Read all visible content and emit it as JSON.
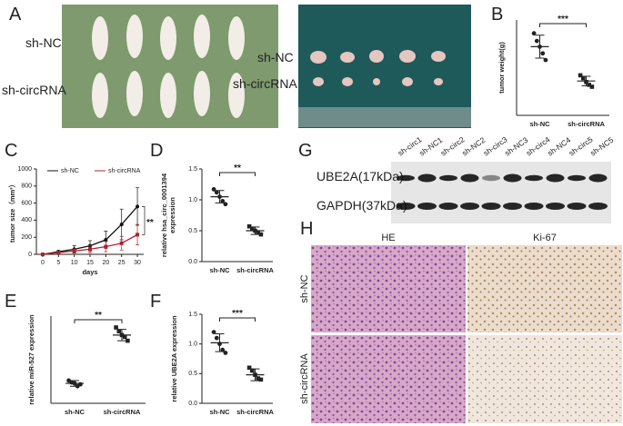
{
  "panel_letters": [
    "A",
    "B",
    "C",
    "D",
    "E",
    "F",
    "G",
    "H"
  ],
  "panel_a": {
    "mice_labels": [
      "sh-NC",
      "sh-circRNA"
    ],
    "tumor_labels": [
      "sh-NC",
      "sh-circRNA"
    ]
  },
  "panel_g": {
    "lanes": [
      "sh-circ1",
      "sh-NC1",
      "sh-circ2",
      "sh-NC2",
      "sh-circ3",
      "sh-NC3",
      "sh-circ4",
      "sh-NC4",
      "sh-circ5",
      "sh-NC5"
    ],
    "rows": [
      "UBE2A(17kDa)",
      "GAPDH(37kDa)"
    ]
  },
  "panel_h": {
    "columns": [
      "HE",
      "Ki-67"
    ],
    "rows": [
      "sh-NC",
      "sh-circRNA"
    ]
  },
  "chart_data": [
    {
      "type": "dot",
      "ylabel": [
        "tumor weight(g)"
      ],
      "categories": [
        "sh-NC",
        "sh-circRNA"
      ],
      "points": [
        [
          0.86,
          0.78,
          0.72,
          0.65,
          0.58
        ],
        [
          0.42,
          0.39,
          0.35,
          0.32,
          0.3
        ]
      ],
      "means": [
        0.72,
        0.36
      ],
      "sds": [
        0.12,
        0.05
      ],
      "ylim": [
        0,
        1.0
      ],
      "annotation": "***"
    },
    {
      "type": "line",
      "xlabel": "days",
      "ylabel": [
        "tumor size（mm³）"
      ],
      "x": [
        0,
        5,
        10,
        15,
        20,
        25,
        30
      ],
      "xlim": [
        -2,
        32
      ],
      "xticks": [
        0,
        5,
        10,
        15,
        20,
        25,
        30
      ],
      "ylim": [
        0,
        1000
      ],
      "yticks": [
        0,
        200,
        400,
        600,
        800,
        1000
      ],
      "annotation": "**",
      "series": [
        {
          "name": "sh-NC",
          "color": "#111111",
          "values": [
            0,
            30,
            60,
            100,
            170,
            350,
            560
          ],
          "errors": [
            0,
            15,
            40,
            60,
            100,
            180,
            220
          ]
        },
        {
          "name": "sh-circRNA",
          "color": "#b0202a",
          "values": [
            0,
            20,
            40,
            60,
            90,
            130,
            230
          ],
          "errors": [
            0,
            10,
            25,
            40,
            60,
            80,
            120
          ]
        }
      ]
    },
    {
      "type": "dot",
      "ylabel": [
        "relative hsa_circ_0001394",
        "expression"
      ],
      "categories": [
        "sh-NC",
        "sh-circRNA"
      ],
      "points": [
        [
          1.17,
          1.12,
          1.05,
          0.98,
          0.93
        ],
        [
          0.57,
          0.53,
          0.5,
          0.47,
          0.44
        ]
      ],
      "means": [
        1.05,
        0.5
      ],
      "sds": [
        0.1,
        0.06
      ],
      "ylim": [
        0,
        1.5
      ],
      "yticks": [
        {
          "value": 0,
          "label": "0.0"
        },
        0.5,
        {
          "value": 1,
          "label": "1.0"
        },
        1.5
      ],
      "annotation": "**"
    },
    {
      "type": "dot",
      "ylabel": [
        "relative miR-527 expression"
      ],
      "categories": [
        "sh-NC",
        "sh-circRNA"
      ],
      "points": [
        [
          1.2,
          1.1,
          1.05,
          0.9,
          1.0
        ],
        [
          4.0,
          3.8,
          3.6,
          3.5,
          3.3
        ]
      ],
      "means": [
        1.05,
        3.6
      ],
      "sds": [
        0.15,
        0.3
      ],
      "ylim": [
        0,
        4.6
      ],
      "annotation": "**"
    },
    {
      "type": "dot",
      "ylabel": [
        "relative UBE2A  expression"
      ],
      "categories": [
        "sh-NC",
        "sh-circRNA"
      ],
      "points": [
        [
          1.2,
          1.1,
          1.0,
          0.9,
          0.85
        ],
        [
          0.6,
          0.55,
          0.48,
          0.42,
          0.4
        ]
      ],
      "means": [
        1.02,
        0.48
      ],
      "sds": [
        0.15,
        0.1
      ],
      "ylim": [
        0,
        1.5
      ],
      "yticks": [
        {
          "value": 0,
          "label": "0.0"
        },
        0.5,
        {
          "value": 1,
          "label": "1.0"
        },
        1.5
      ],
      "annotation": "***"
    }
  ]
}
